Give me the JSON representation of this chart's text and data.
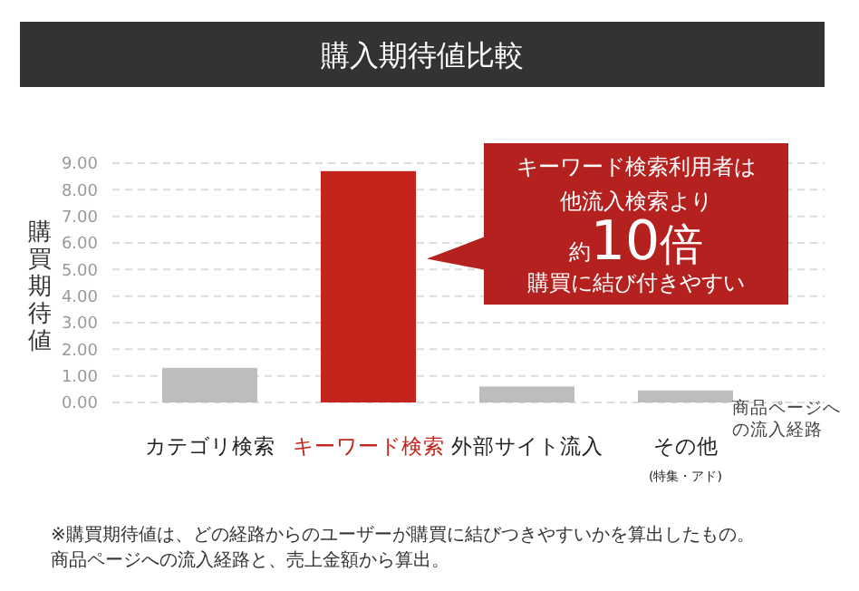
{
  "chart_data": {
    "type": "bar",
    "title": "購入期待値比較",
    "ylabel": "購買期待値",
    "xlabel": "商品ページへの流入経路",
    "categories": [
      "カテゴリ検索",
      "キーワード検索",
      "外部サイト流入",
      "その他\n(特集・アド)"
    ],
    "values": [
      1.3,
      8.7,
      0.6,
      0.45
    ],
    "colors": [
      "#bdbdbd",
      "#c4241c",
      "#bdbdbd",
      "#bdbdbd"
    ],
    "ylim": [
      0,
      9
    ],
    "yticks": [
      {
        "value": 0,
        "label": "0.00"
      },
      {
        "value": 1,
        "label": "1.00"
      },
      {
        "value": 2,
        "label": "2.00"
      },
      {
        "value": 3,
        "label": "3.00"
      },
      {
        "value": 4,
        "label": "4.00"
      },
      {
        "value": 5,
        "label": "5.00"
      },
      {
        "value": 6,
        "label": "6.00"
      },
      {
        "value": 7,
        "label": "7.00"
      },
      {
        "value": 8,
        "label": "8.00"
      },
      {
        "value": 9,
        "label": "9.00"
      }
    ],
    "grid": "y",
    "annotations": [
      "キーワード検索利用者は",
      "他流入検索より",
      "約10倍",
      "購買に結び付きやすい",
      "※購買期待値は、どの経路からのユーザーが購買に結びつきやすいかを算出したもの。",
      "商品ページへの流入経路と、売上金額から算出。"
    ]
  }
}
